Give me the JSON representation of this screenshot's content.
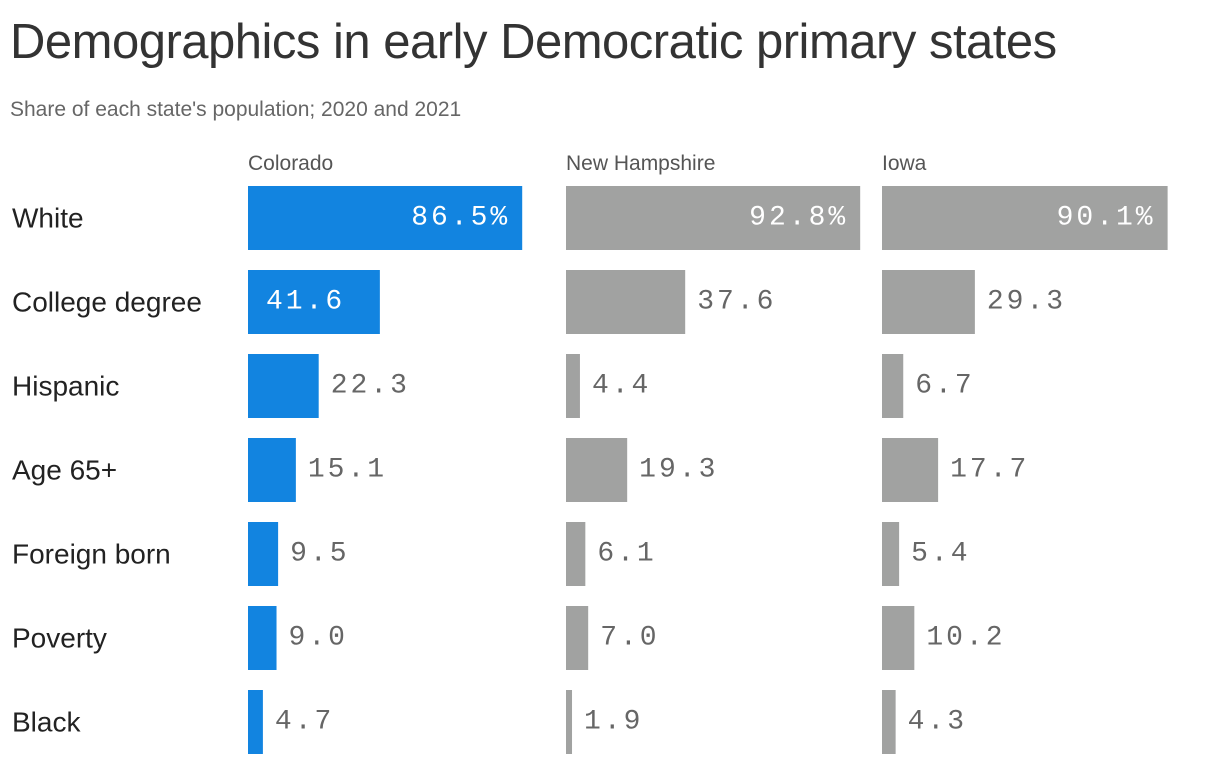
{
  "title": "Demographics in early Democratic primary states",
  "subtitle": "Share of each state's population; 2020 and 2021",
  "colors": {
    "highlight": "#1284e0",
    "default": "#a1a2a1",
    "label_inside": "#ffffff",
    "label_outside": "#666666"
  },
  "chart_data": {
    "type": "bar",
    "orientation": "horizontal",
    "layout": "small-multiples",
    "title": "Demographics in early Democratic primary states",
    "subtitle": "Share of each state's population; 2020 and 2021",
    "unit": "%",
    "categories": [
      "White",
      "College degree",
      "Hispanic",
      "Age 65+",
      "Foreign born",
      "Poverty",
      "Black"
    ],
    "series": [
      {
        "name": "Colorado",
        "color": "#1284e0",
        "values": [
          86.5,
          41.6,
          22.3,
          15.1,
          9.5,
          9.0,
          4.7
        ],
        "labels": [
          "86.5%",
          "41.6",
          "22.3",
          "15.1",
          "9.5",
          "9.0",
          "4.7"
        ]
      },
      {
        "name": "New Hampshire",
        "color": "#a1a2a1",
        "values": [
          92.8,
          37.6,
          4.4,
          19.3,
          6.1,
          7.0,
          1.9
        ],
        "labels": [
          "92.8%",
          "37.6",
          "4.4",
          "19.3",
          "6.1",
          "7.0",
          "1.9"
        ]
      },
      {
        "name": "Iowa",
        "color": "#a1a2a1",
        "values": [
          90.1,
          29.3,
          6.7,
          17.7,
          5.4,
          10.2,
          4.3
        ],
        "labels": [
          "90.1%",
          "29.3",
          "6.7",
          "17.7",
          "5.4",
          "10.2",
          "4.3"
        ]
      }
    ],
    "xlim": [
      0,
      100
    ],
    "grid": false,
    "legend": "none"
  }
}
